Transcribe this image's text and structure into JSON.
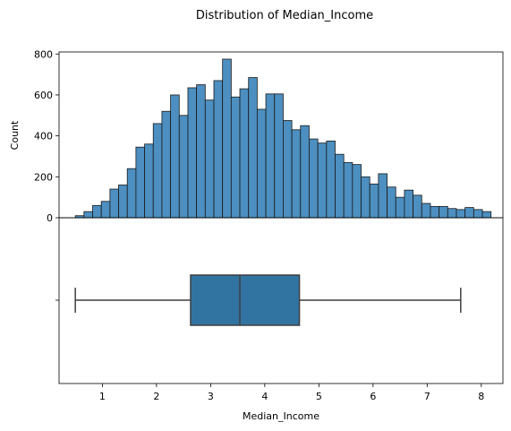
{
  "chart_data": [
    {
      "type": "bar",
      "subtype": "histogram",
      "title": "Distribution of Median_Income",
      "xlabel": "",
      "ylabel": "Count",
      "xlim": [
        0.2,
        8.4
      ],
      "ylim": [
        0,
        810
      ],
      "x_ticks": [
        1,
        2,
        3,
        4,
        5,
        6,
        7,
        8
      ],
      "y_ticks": [
        0,
        200,
        400,
        600,
        800
      ],
      "bin_start": 0.5,
      "bin_width": 0.16,
      "values": [
        10,
        30,
        60,
        80,
        140,
        160,
        240,
        345,
        360,
        460,
        520,
        600,
        500,
        635,
        650,
        575,
        670,
        775,
        590,
        630,
        685,
        530,
        605,
        605,
        475,
        430,
        450,
        385,
        365,
        375,
        310,
        270,
        260,
        200,
        165,
        215,
        150,
        100,
        135,
        110,
        70,
        55,
        55,
        45,
        40,
        50,
        40,
        30
      ],
      "color": "#4c8fc0"
    },
    {
      "type": "box",
      "xlabel": "Median_Income",
      "ylabel": "",
      "y_ticks": [
        ""
      ],
      "whisker_low": 0.5,
      "q1": 2.63,
      "median": 3.54,
      "q3": 4.64,
      "whisker_high": 7.62,
      "color": "#3274a1"
    }
  ]
}
